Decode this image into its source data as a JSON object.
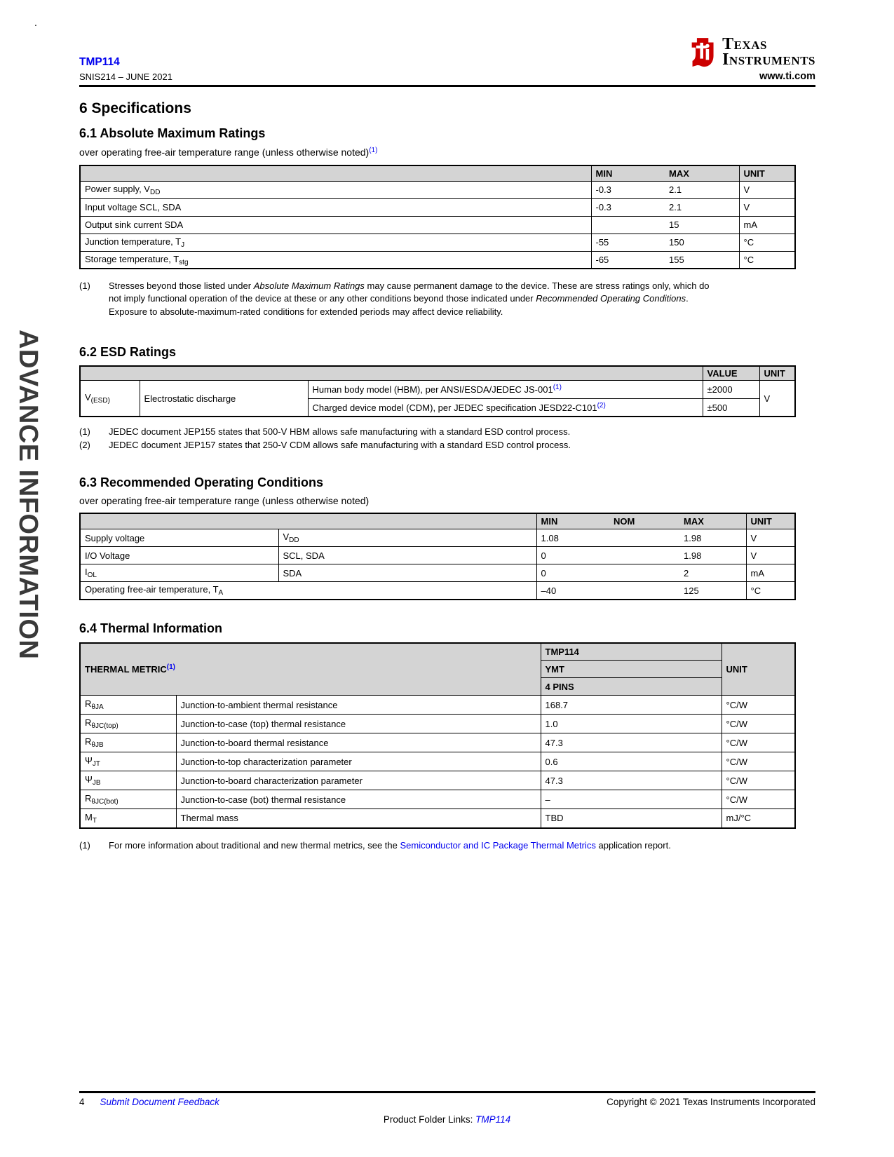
{
  "colors": {
    "link_blue": "#0000EE",
    "ti_logo_red": "#CC0000",
    "table_header_gray": "#D4D4D4",
    "watermark_gray": "#3A3A3A"
  },
  "page": {
    "stray_dot": ".",
    "watermark": "ADVANCE INFORMATION",
    "header": {
      "part_number": "TMP114",
      "doc_number": "SNIS214 – JUNE 2021",
      "website": "www.ti.com",
      "logo_line1": "Texas",
      "logo_line2": "Instruments",
      "logo_bug_text": "ti"
    },
    "footer": {
      "page_number": "4",
      "feedback_link": "Submit Document Feedback",
      "copyright": "Copyright © 2021 Texas Instruments Incorporated",
      "product_folder_prefix": "Product Folder Links: ",
      "product_folder_link": "TMP114"
    }
  },
  "s6": {
    "title": "6 Specifications"
  },
  "s61": {
    "title": "6.1 Absolute Maximum Ratings",
    "subtitle": [
      {
        "t": "over operating free-air temperature range (unless otherwise noted)"
      },
      {
        "t": "(1)",
        "s": "sl"
      }
    ],
    "table": {
      "headers": {
        "min": "MIN",
        "max": "MAX",
        "unit": "UNIT"
      },
      "rows": [
        {
          "label": [
            {
              "t": "Power supply, V"
            },
            {
              "t": "DD",
              "s": "sub"
            }
          ],
          "min": "-0.3",
          "max": "2.1",
          "unit": "V"
        },
        {
          "label": [
            {
              "t": "Input voltage SCL, SDA"
            }
          ],
          "min": "-0.3",
          "max": "2.1",
          "unit": "V"
        },
        {
          "label": [
            {
              "t": "Output sink current SDA"
            }
          ],
          "min": "",
          "max": "15",
          "unit": "mA"
        },
        {
          "label": [
            {
              "t": "Junction temperature, T"
            },
            {
              "t": "J",
              "s": "sub"
            }
          ],
          "min": "-55",
          "max": "150",
          "unit": "°C"
        },
        {
          "label": [
            {
              "t": "Storage temperature, T"
            },
            {
              "t": "stg",
              "s": "sub"
            }
          ],
          "min": "-65",
          "max": "155",
          "unit": "°C"
        }
      ]
    },
    "notes": [
      {
        "n": "(1)",
        "body": [
          {
            "t": "Stresses beyond those listed under "
          },
          {
            "t": "Absolute Maximum Ratings",
            "s": "i"
          },
          {
            "t": " may cause permanent damage to the device. These are stress ratings only, which do not imply functional operation of the device at these or any other conditions beyond those indicated under "
          },
          {
            "t": "Recommended Operating Conditions",
            "s": "i"
          },
          {
            "t": ". Exposure to absolute-maximum-rated conditions for extended periods may affect device reliability."
          }
        ]
      }
    ]
  },
  "s62": {
    "title": "6.2 ESD Ratings",
    "table": {
      "headers": {
        "value": "VALUE",
        "unit": "UNIT"
      },
      "sym": [
        {
          "t": "V"
        },
        {
          "t": "(ESD)",
          "s": "sub"
        }
      ],
      "name": "Electrostatic discharge",
      "unit": "V",
      "rows": [
        {
          "model": [
            {
              "t": "Human body model (HBM), per ANSI/ESDA/JEDEC JS-001"
            },
            {
              "t": "(1)",
              "s": "sl"
            }
          ],
          "value": "±2000"
        },
        {
          "model": [
            {
              "t": "Charged device model (CDM), per JEDEC specification JESD22-C101"
            },
            {
              "t": "(2)",
              "s": "sl"
            }
          ],
          "value": "±500"
        }
      ]
    },
    "notes": [
      {
        "n": "(1)",
        "body": [
          {
            "t": "JEDEC document JEP155 states that 500-V HBM allows safe manufacturing with a standard ESD control process."
          }
        ]
      },
      {
        "n": "(2)",
        "body": [
          {
            "t": "JEDEC document JEP157 states that 250-V CDM allows safe manufacturing with a standard ESD control process."
          }
        ]
      }
    ]
  },
  "s63": {
    "title": "6.3 Recommended Operating Conditions",
    "subtitle": [
      {
        "t": "over operating free-air temperature range (unless otherwise noted)"
      }
    ],
    "table": {
      "headers": {
        "min": "MIN",
        "nom": "NOM",
        "max": "MAX",
        "unit": "UNIT"
      },
      "rows": [
        {
          "c1": [
            {
              "t": "Supply voltage"
            }
          ],
          "c2": [
            {
              "t": "V"
            },
            {
              "t": "DD",
              "s": "sub"
            }
          ],
          "min": "1.08",
          "nom": "",
          "max": "1.98",
          "unit": "V"
        },
        {
          "c1": [
            {
              "t": "I/O Voltage"
            }
          ],
          "c2": [
            {
              "t": "SCL, SDA"
            }
          ],
          "min": "0",
          "nom": "",
          "max": "1.98",
          "unit": "V"
        },
        {
          "c1": [
            {
              "t": "I"
            },
            {
              "t": "OL",
              "s": "sub"
            }
          ],
          "c2": [
            {
              "t": "SDA"
            }
          ],
          "min": "0",
          "nom": "",
          "max": "2",
          "unit": "mA"
        },
        {
          "c1": [
            {
              "t": "Operating free-air temperature, T"
            },
            {
              "t": "A",
              "s": "sub"
            }
          ],
          "min": "–40",
          "nom": "",
          "max": "125",
          "unit": "°C"
        }
      ]
    }
  },
  "s64": {
    "title": "6.4 Thermal Information",
    "table": {
      "metric_header": [
        {
          "t": "THERMAL METRIC"
        },
        {
          "t": "(1)",
          "s": "sl"
        }
      ],
      "device": "TMP114",
      "package": "YMT",
      "pins": "4 PINS",
      "unit_header": "UNIT",
      "rows": [
        {
          "sym": [
            {
              "t": "R"
            },
            {
              "t": "θJA",
              "s": "sub"
            }
          ],
          "desc": "Junction-to-ambient thermal resistance",
          "value": "168.7",
          "unit": "°C/W"
        },
        {
          "sym": [
            {
              "t": "R"
            },
            {
              "t": "θJC(top)",
              "s": "sub"
            }
          ],
          "desc": "Junction-to-case (top) thermal resistance",
          "value": "1.0",
          "unit": "°C/W"
        },
        {
          "sym": [
            {
              "t": "R"
            },
            {
              "t": "θJB",
              "s": "sub"
            }
          ],
          "desc": "Junction-to-board thermal resistance",
          "value": "47.3",
          "unit": "°C/W"
        },
        {
          "sym": [
            {
              "t": "Ψ"
            },
            {
              "t": "JT",
              "s": "sub"
            }
          ],
          "desc": "Junction-to-top characterization parameter",
          "value": "0.6",
          "unit": "°C/W"
        },
        {
          "sym": [
            {
              "t": "Ψ"
            },
            {
              "t": "JB",
              "s": "sub"
            }
          ],
          "desc": "Junction-to-board characterization parameter",
          "value": "47.3",
          "unit": "°C/W"
        },
        {
          "sym": [
            {
              "t": "R"
            },
            {
              "t": "θJC(bot)",
              "s": "sub"
            }
          ],
          "desc": "Junction-to-case (bot) thermal resistance",
          "value": "–",
          "unit": "°C/W"
        },
        {
          "sym": [
            {
              "t": "M"
            },
            {
              "t": "T",
              "s": "sub"
            }
          ],
          "desc": "Thermal mass",
          "value": "TBD",
          "unit": "mJ/°C"
        }
      ]
    },
    "notes": [
      {
        "n": "(1)",
        "body": [
          {
            "t": "For more information about traditional and new thermal metrics, see the "
          },
          {
            "t": "Semiconductor and IC Package Thermal Metrics",
            "s": "a"
          },
          {
            "t": " application report."
          }
        ]
      }
    ]
  }
}
